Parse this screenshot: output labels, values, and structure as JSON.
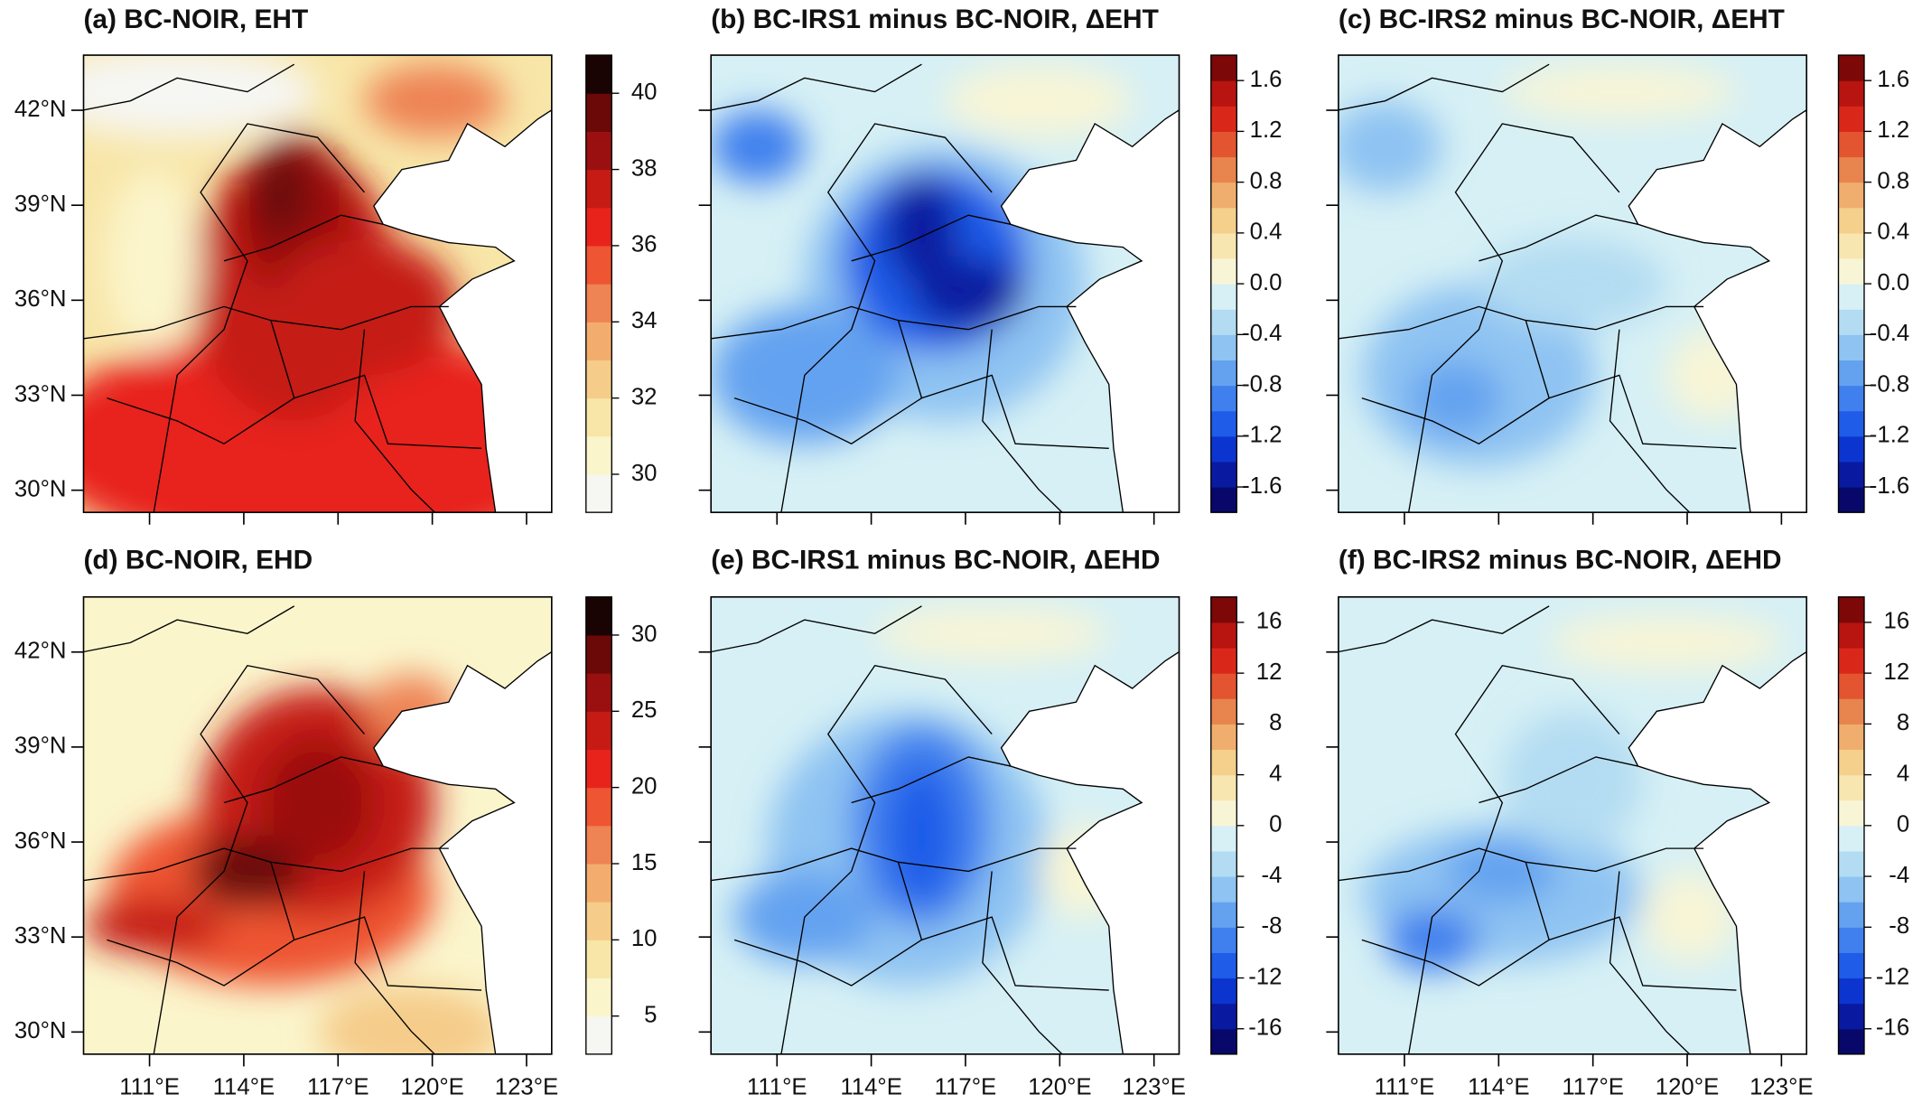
{
  "lat_lim": [
    29.3,
    43.74
  ],
  "lon_lim": [
    108.9,
    123.8
  ],
  "lat_ticks": [
    {
      "value": 42,
      "label": "42°N"
    },
    {
      "value": 39,
      "label": "39°N"
    },
    {
      "value": 36,
      "label": "36°N"
    },
    {
      "value": 33,
      "label": "33°N"
    },
    {
      "value": 30,
      "label": "30°N"
    }
  ],
  "lon_ticks": [
    {
      "value": 111,
      "label": "111°E"
    },
    {
      "value": 114,
      "label": "114°E"
    },
    {
      "value": 117,
      "label": "117°E"
    },
    {
      "value": 120,
      "label": "120°E"
    },
    {
      "value": 123,
      "label": "123°E"
    }
  ],
  "panels": [
    {
      "title": "(a) BC-NOIR, EHT",
      "colorbar": {
        "lim": [
          29,
          41
        ],
        "ticks": [
          30,
          32,
          34,
          36,
          38,
          40
        ],
        "colors": [
          "#f6f6f3",
          "#fbf5cc",
          "#f8e6a8",
          "#f5cc8a",
          "#f2ad6e",
          "#ee8354",
          "#ee5533",
          "#e8231c",
          "#c51b14",
          "#9a1010",
          "#6b0808",
          "#1a0303"
        ]
      }
    },
    {
      "title": "(b) BC-IRS1 minus BC-NOIR, ΔEHT",
      "colorbar": {
        "lim": [
          -1.8,
          1.8
        ],
        "ticks": [
          -1.6,
          -1.2,
          -0.8,
          -0.4,
          {
            "value": 0,
            "label": "0.0"
          },
          0.4,
          0.8,
          1.2,
          1.6
        ],
        "colors": [
          "#08086b",
          "#0a1aa0",
          "#0c35d0",
          "#1f5ce8",
          "#3f80ee",
          "#64a2f0",
          "#8ec3f2",
          "#b3dcf2",
          "#d6f0f5",
          "#f8f5d6",
          "#f7e6b0",
          "#f5cf8c",
          "#f0ae6e",
          "#e8844e",
          "#e25530",
          "#d9281a",
          "#b81410",
          "#7d0808"
        ]
      }
    },
    {
      "title": "(c) BC-IRS2 minus BC-NOIR, ΔEHT",
      "colorbar": {
        "lim": [
          -1.8,
          1.8
        ],
        "ticks": [
          -1.6,
          -1.2,
          -0.8,
          -0.4,
          {
            "value": 0,
            "label": "0.0"
          },
          0.4,
          0.8,
          1.2,
          1.6
        ],
        "colors": [
          "#08086b",
          "#0a1aa0",
          "#0c35d0",
          "#1f5ce8",
          "#3f80ee",
          "#64a2f0",
          "#8ec3f2",
          "#b3dcf2",
          "#d6f0f5",
          "#f8f5d6",
          "#f7e6b0",
          "#f5cf8c",
          "#f0ae6e",
          "#e8844e",
          "#e25530",
          "#d9281a",
          "#b81410",
          "#7d0808"
        ]
      }
    },
    {
      "title": "(d) BC-NOIR, EHD",
      "colorbar": {
        "lim": [
          2.5,
          32.5
        ],
        "ticks": [
          5,
          10,
          15,
          20,
          25,
          30
        ],
        "colors": [
          "#f6f6f3",
          "#fbf5cc",
          "#f8e6a8",
          "#f5cc8a",
          "#f2ad6e",
          "#ee8354",
          "#ee5533",
          "#e8231c",
          "#c51b14",
          "#9a1010",
          "#6b0808",
          "#1a0303"
        ]
      }
    },
    {
      "title": "(e) BC-IRS1 minus BC-NOIR, ΔEHD",
      "colorbar": {
        "lim": [
          -18,
          18
        ],
        "ticks": [
          -16,
          -12,
          -8,
          -4,
          0,
          4,
          8,
          12,
          16
        ],
        "colors": [
          "#08086b",
          "#0a1aa0",
          "#0c35d0",
          "#1f5ce8",
          "#3f80ee",
          "#64a2f0",
          "#8ec3f2",
          "#b3dcf2",
          "#d6f0f5",
          "#f8f5d6",
          "#f7e6b0",
          "#f5cf8c",
          "#f0ae6e",
          "#e8844e",
          "#e25530",
          "#d9281a",
          "#b81410",
          "#7d0808"
        ]
      }
    },
    {
      "title": "(f) BC-IRS2 minus BC-NOIR, ΔEHD",
      "colorbar": {
        "lim": [
          -18,
          18
        ],
        "ticks": [
          -16,
          -12,
          -8,
          -4,
          0,
          4,
          8,
          12,
          16
        ],
        "colors": [
          "#08086b",
          "#0a1aa0",
          "#0c35d0",
          "#1f5ce8",
          "#3f80ee",
          "#64a2f0",
          "#8ec3f2",
          "#b3dcf2",
          "#d6f0f5",
          "#f8f5d6",
          "#f7e6b0",
          "#f5cf8c",
          "#f0ae6e",
          "#e8844e",
          "#e25530",
          "#d9281a",
          "#b81410",
          "#7d0808"
        ]
      }
    }
  ]
}
